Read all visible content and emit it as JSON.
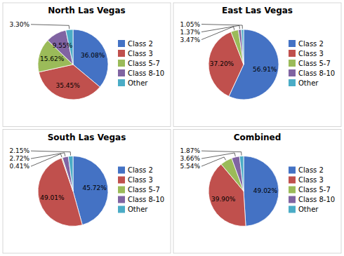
{
  "chart_data": [
    {
      "type": "pie",
      "title": "North Las Vegas",
      "categories": [
        "Class 2",
        "Class 3",
        "Class 5-7",
        "Class 8-10",
        "Other"
      ],
      "values": [
        36.08,
        35.45,
        15.62,
        9.55,
        3.3
      ],
      "value_labels": [
        "36.08%",
        "35.45%",
        "15.62%",
        "9.55%",
        "3.30%"
      ],
      "colors": [
        "#4472C4",
        "#C0504D",
        "#9BBB59",
        "#8064A2",
        "#4BACC6"
      ],
      "data_labels": true,
      "legend": "right"
    },
    {
      "type": "pie",
      "title": "East Las Vegas",
      "categories": [
        "Class 2",
        "Class 3",
        "Class 5-7",
        "Class 8-10",
        "Other"
      ],
      "values": [
        56.91,
        37.2,
        3.47,
        1.37,
        1.05
      ],
      "value_labels": [
        "56.91%",
        "37.20%",
        "3.47%",
        "1.37%",
        "1.05%"
      ],
      "colors": [
        "#4472C4",
        "#C0504D",
        "#9BBB59",
        "#8064A2",
        "#4BACC6"
      ],
      "data_labels": true,
      "legend": "right"
    },
    {
      "type": "pie",
      "title": "South Las Vegas",
      "categories": [
        "Class 2",
        "Class 3",
        "Class 5-7",
        "Class 8-10",
        "Other"
      ],
      "values": [
        45.72,
        49.01,
        0.41,
        2.72,
        2.15
      ],
      "value_labels": [
        "45.72%",
        "49.01%",
        "0.41%",
        "2.72%",
        "2.15%"
      ],
      "colors": [
        "#4472C4",
        "#C0504D",
        "#9BBB59",
        "#8064A2",
        "#4BACC6"
      ],
      "data_labels": true,
      "legend": "right"
    },
    {
      "type": "pie",
      "title": "Combined",
      "categories": [
        "Class 2",
        "Class 3",
        "Class 5-7",
        "Class 8-10",
        "Other"
      ],
      "values": [
        49.02,
        39.9,
        5.54,
        3.66,
        1.87
      ],
      "value_labels": [
        "49.02%",
        "39.90%",
        "5.54%",
        "3.66%",
        "1.87%"
      ],
      "colors": [
        "#4472C4",
        "#C0504D",
        "#9BBB59",
        "#8064A2",
        "#4BACC6"
      ],
      "data_labels": true,
      "legend": "right"
    }
  ]
}
